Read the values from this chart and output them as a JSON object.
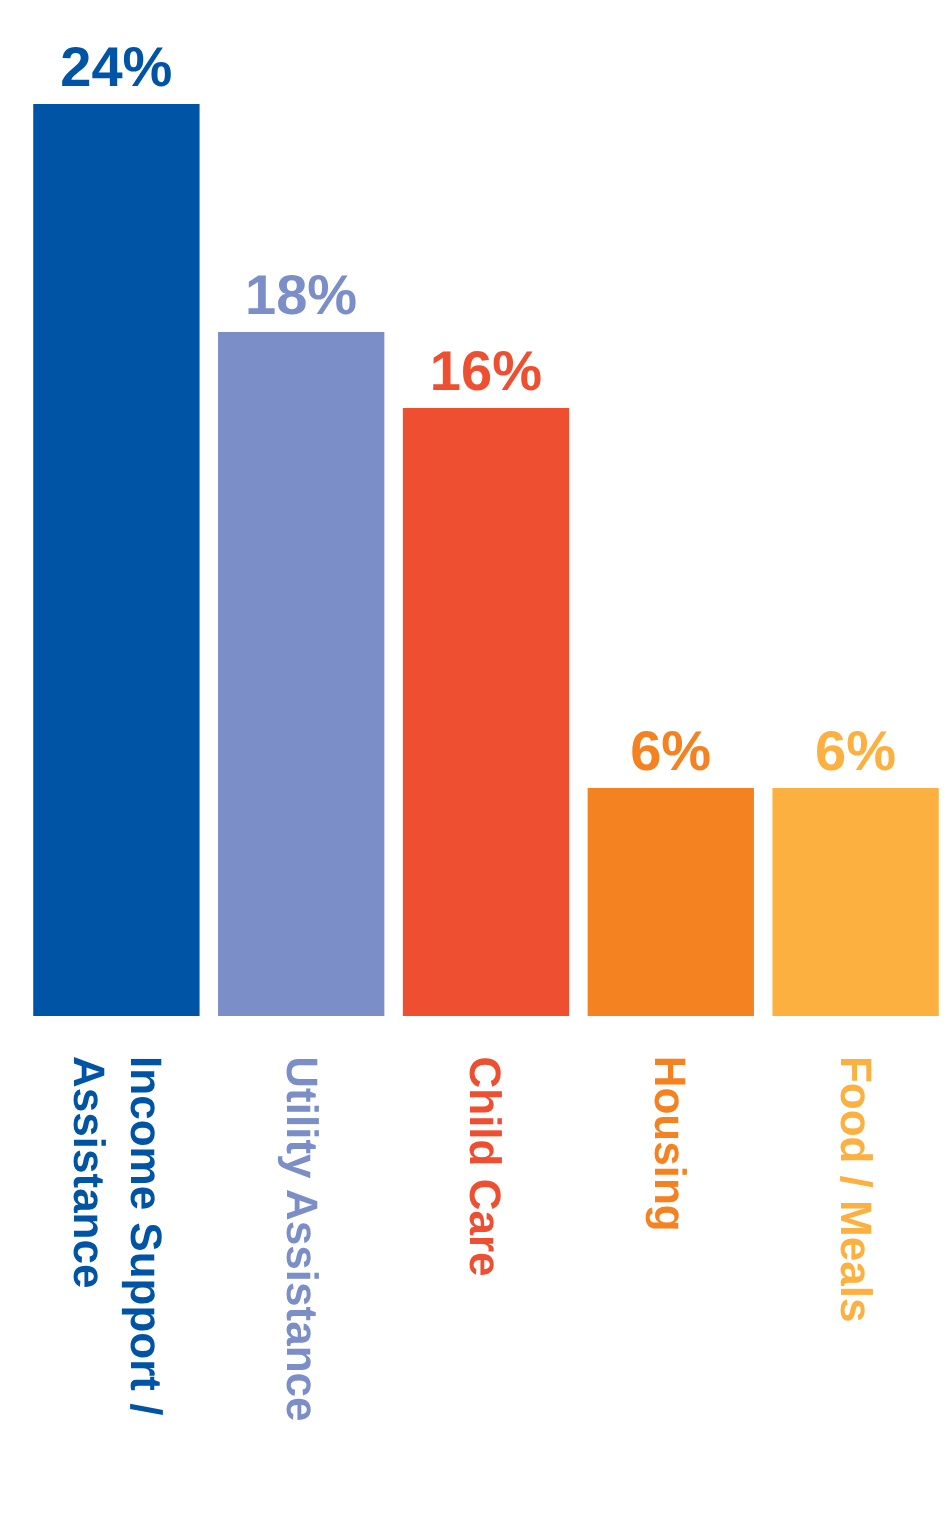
{
  "chart_data": {
    "type": "bar",
    "categories": [
      "Income Support / Assistance",
      "Utility Assistance",
      "Child Care",
      "Housing",
      "Food / Meals"
    ],
    "values": [
      24,
      18,
      16,
      6,
      6
    ],
    "colors": [
      "#0054a6",
      "#7b8ec8",
      "#ef4f31",
      "#f58220",
      "#fbb040"
    ],
    "value_labels": [
      "24%",
      "18%",
      "16%",
      "6%",
      "6%"
    ],
    "tick_labels": false
  }
}
